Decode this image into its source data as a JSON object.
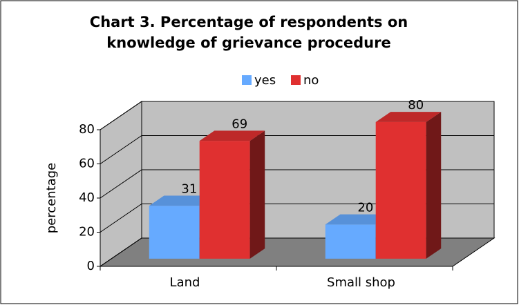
{
  "chart_data": {
    "type": "bar3d",
    "title": "Chart 3. Percentage of respondents on knowledge of grievance procedure",
    "title_lines": [
      "Chart 3. Percentage of respondents on",
      "knowledge of grievance procedure"
    ],
    "categories": [
      "Land",
      "Small shop"
    ],
    "series": [
      {
        "name": "yes",
        "color": "#66aaff",
        "values": [
          31,
          20
        ]
      },
      {
        "name": "no",
        "color": "#e03030",
        "values": [
          69,
          80
        ]
      }
    ],
    "y_label": "percentage",
    "ylim": [
      0,
      80
    ],
    "yticks": [
      0,
      20,
      40,
      60,
      80
    ],
    "grid": true,
    "legend": "top"
  }
}
